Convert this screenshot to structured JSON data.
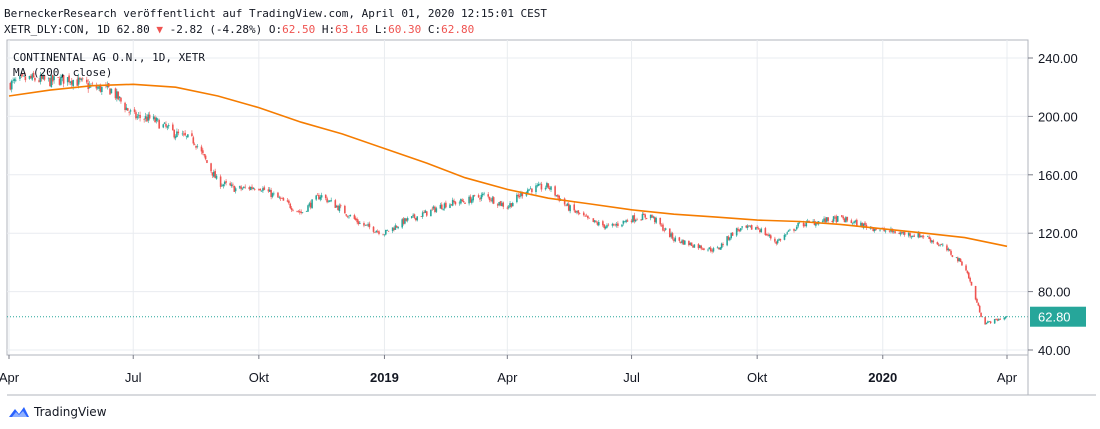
{
  "header": {
    "line1": "BerneckerResearch veröffentlicht auf TradingView.com, April 01, 2020 12:15:01 CEST",
    "symbol": "XETR_DLY:CON, 1D 62.80",
    "change_arrow": "▼",
    "change": "-2.82 (-4.28%)",
    "o_label": "O:",
    "o_value": "62.50",
    "h_label": "H:",
    "h_value": "63.16",
    "l_label": "L:",
    "l_value": "60.30",
    "c_label": "C:",
    "c_value": "62.80"
  },
  "legend": {
    "instrument": "CONTINENTAL AG O.N., 1D, XETR",
    "indicator": "MA (200, close)"
  },
  "brand": {
    "name": "TradingView"
  },
  "colors": {
    "up": "#26a69a",
    "down": "#ef5350",
    "ma": "#f57c00",
    "last_price_bg": "#26a69a",
    "grid": "#e9ecf0",
    "axis": "#787b86"
  },
  "chart_data": {
    "type": "line",
    "y_ticks": [
      "240.00",
      "200.00",
      "160.00",
      "120.00",
      "80.00",
      "40.00"
    ],
    "ylim": [
      40,
      240
    ],
    "x_ticks": [
      "Apr",
      "Jul",
      "Okt",
      "2019",
      "Apr",
      "Jul",
      "Okt",
      "2020",
      "Apr"
    ],
    "x_tick_dates": [
      "2018-04-01",
      "2018-07-01",
      "2018-10-01",
      "2019-01-01",
      "2019-04-01",
      "2019-07-01",
      "2019-10-01",
      "2020-01-01",
      "2020-04-01"
    ],
    "last_price": 62.8,
    "last_price_label": "62.80",
    "series": [
      {
        "name": "CONTINENTAL AG O.N., 1D, XETR",
        "kind": "candles",
        "x": [
          "2018-04-01",
          "2018-04-15",
          "2018-05-01",
          "2018-05-15",
          "2018-06-01",
          "2018-06-15",
          "2018-07-01",
          "2018-07-15",
          "2018-08-01",
          "2018-08-15",
          "2018-09-01",
          "2018-09-15",
          "2018-10-01",
          "2018-10-15",
          "2018-11-01",
          "2018-11-15",
          "2018-12-01",
          "2018-12-15",
          "2019-01-01",
          "2019-01-15",
          "2019-02-01",
          "2019-02-15",
          "2019-03-01",
          "2019-03-15",
          "2019-04-01",
          "2019-04-15",
          "2019-05-01",
          "2019-05-15",
          "2019-06-01",
          "2019-06-15",
          "2019-07-01",
          "2019-07-15",
          "2019-08-01",
          "2019-08-15",
          "2019-09-01",
          "2019-09-15",
          "2019-10-01",
          "2019-10-15",
          "2019-11-01",
          "2019-11-15",
          "2019-12-01",
          "2019-12-15",
          "2020-01-01",
          "2020-01-15",
          "2020-02-01",
          "2020-02-15",
          "2020-03-01",
          "2020-03-15",
          "2020-04-01"
        ],
        "close": [
          222,
          226,
          224,
          226,
          220,
          218,
          200,
          198,
          188,
          183,
          155,
          150,
          152,
          144,
          134,
          146,
          136,
          126,
          120,
          128,
          134,
          140,
          142,
          146,
          138,
          150,
          152,
          138,
          128,
          124,
          130,
          132,
          116,
          112,
          108,
          122,
          124,
          114,
          126,
          128,
          130,
          126,
          122,
          120,
          118,
          110,
          98,
          58,
          62.8
        ]
      },
      {
        "name": "MA (200, close)",
        "kind": "line",
        "x": [
          "2018-04-01",
          "2018-05-01",
          "2018-06-01",
          "2018-07-01",
          "2018-08-01",
          "2018-09-01",
          "2018-10-01",
          "2018-11-01",
          "2018-12-01",
          "2019-01-01",
          "2019-02-01",
          "2019-03-01",
          "2019-04-01",
          "2019-05-01",
          "2019-06-01",
          "2019-07-01",
          "2019-08-01",
          "2019-09-01",
          "2019-10-01",
          "2019-11-01",
          "2019-12-01",
          "2020-01-01",
          "2020-02-01",
          "2020-03-01",
          "2020-04-01"
        ],
        "values": [
          214,
          218,
          221,
          222,
          220,
          214,
          206,
          196,
          188,
          178,
          168,
          158,
          150,
          144,
          140,
          136,
          133,
          131,
          129,
          128,
          126,
          123,
          120,
          117,
          111
        ]
      }
    ]
  }
}
